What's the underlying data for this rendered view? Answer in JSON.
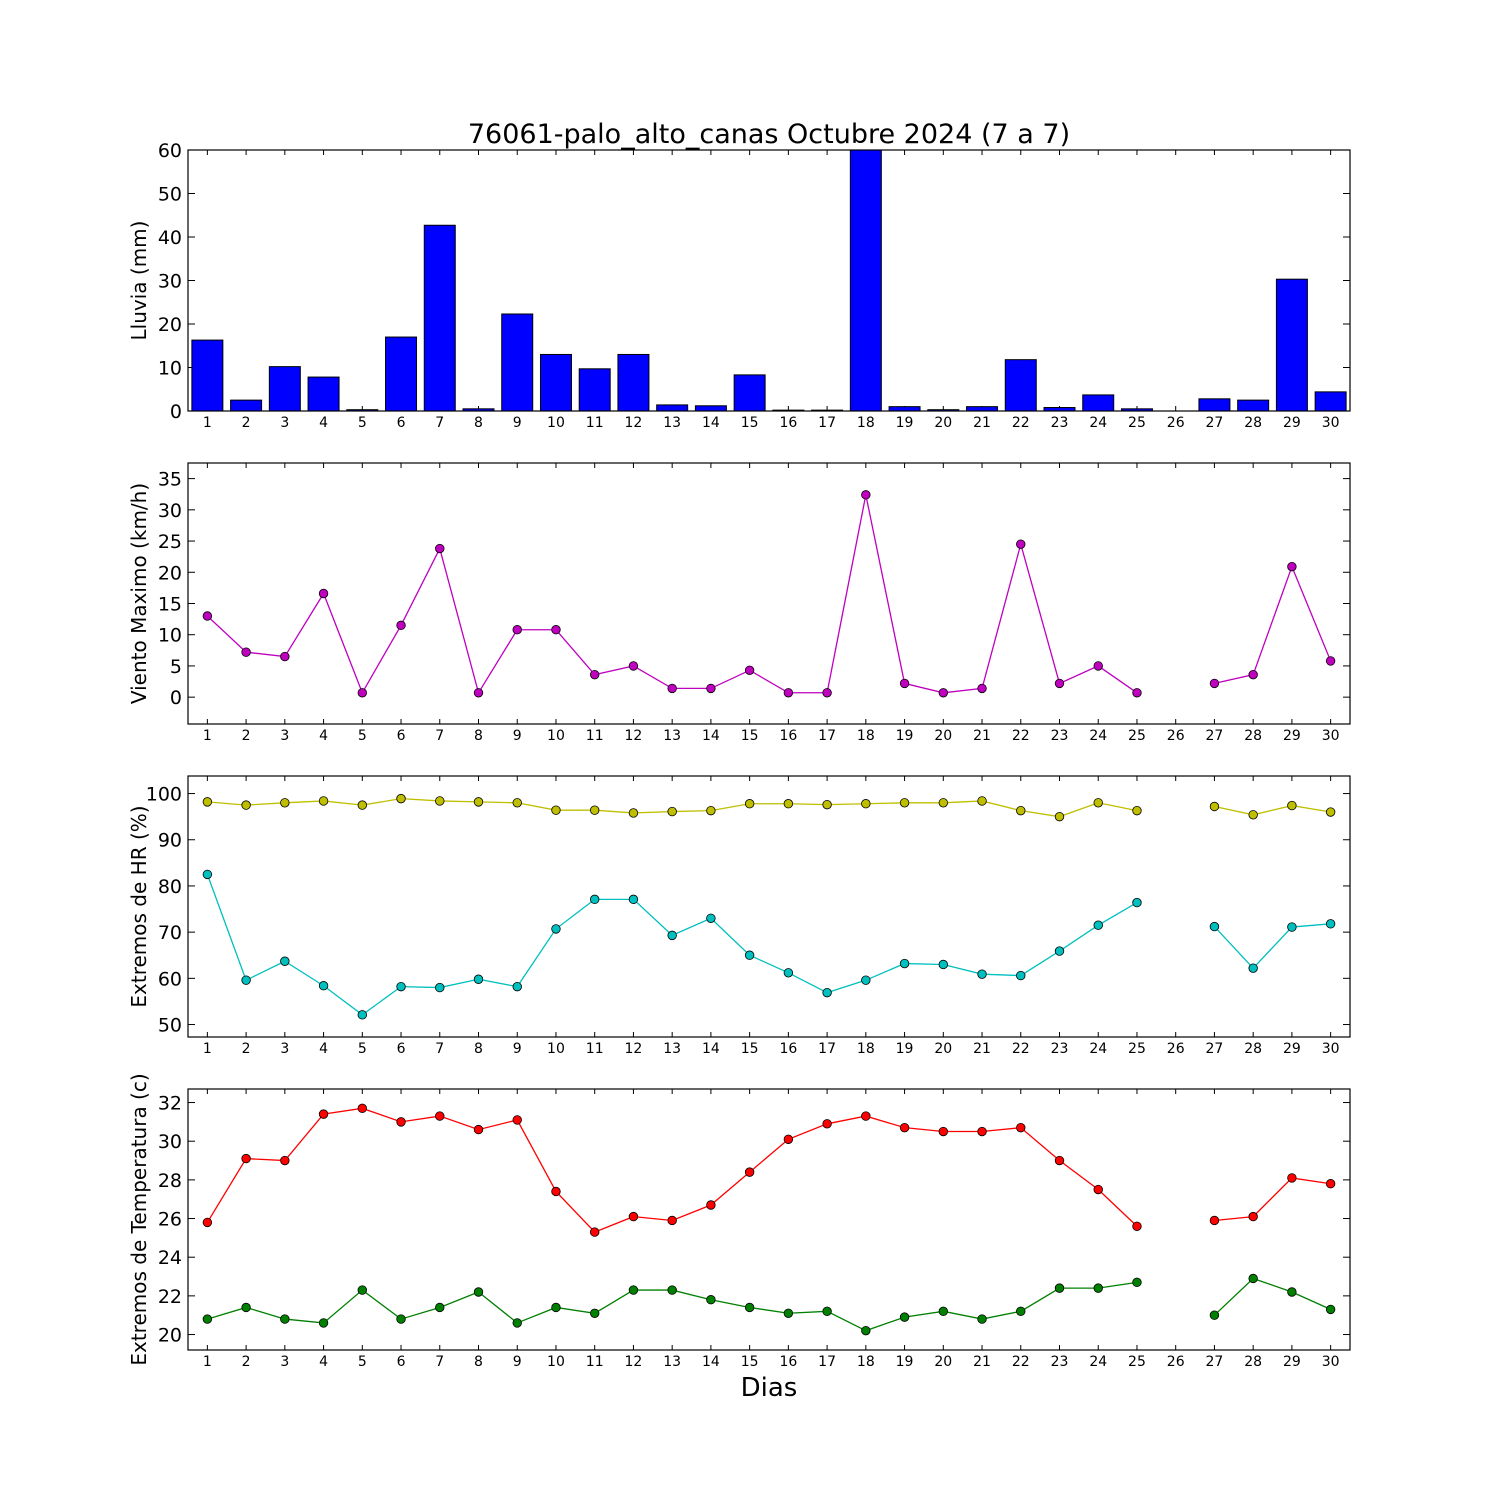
{
  "title": "76061-palo_alto_canas Octubre 2024  (7 a 7)",
  "xlabel": "Dias",
  "chart_data": [
    {
      "type": "bar",
      "ylabel": "Lluvia (mm)",
      "ylim": [
        0,
        60
      ],
      "yticks": [
        0,
        10,
        20,
        30,
        40,
        50,
        60
      ],
      "color": "#0000ff",
      "categories": [
        "1",
        "2",
        "3",
        "4",
        "5",
        "6",
        "7",
        "8",
        "9",
        "10",
        "11",
        "12",
        "13",
        "14",
        "15",
        "16",
        "17",
        "18",
        "19",
        "20",
        "21",
        "22",
        "23",
        "24",
        "25",
        "26",
        "27",
        "28",
        "29",
        "30"
      ],
      "series": [
        {
          "values": [
            16.3,
            2.5,
            10.2,
            7.8,
            0.3,
            17.0,
            42.7,
            0.5,
            22.3,
            13.0,
            9.7,
            13.0,
            1.4,
            1.2,
            8.3,
            0.2,
            0.2,
            60.0,
            1.0,
            0.3,
            1.0,
            11.8,
            0.8,
            3.7,
            0.5,
            null,
            2.8,
            2.5,
            30.3,
            4.4
          ]
        }
      ]
    },
    {
      "type": "line",
      "ylabel": "Viento Maximo (km/h)",
      "ylim": [
        -4.3,
        37.5
      ],
      "yticks": [
        0,
        5,
        10,
        15,
        20,
        25,
        30,
        35
      ],
      "categories": [
        "1",
        "2",
        "3",
        "4",
        "5",
        "6",
        "7",
        "8",
        "9",
        "10",
        "11",
        "12",
        "13",
        "14",
        "15",
        "16",
        "17",
        "18",
        "19",
        "20",
        "21",
        "22",
        "23",
        "24",
        "25",
        "26",
        "27",
        "28",
        "29",
        "30"
      ],
      "series": [
        {
          "color": "#bf00bf",
          "values": [
            13.0,
            7.2,
            6.5,
            16.6,
            0.7,
            11.5,
            23.8,
            0.7,
            10.8,
            10.8,
            3.6,
            5.0,
            1.4,
            1.4,
            4.3,
            0.7,
            0.7,
            32.4,
            2.2,
            0.7,
            1.4,
            24.5,
            2.2,
            5.0,
            0.7,
            null,
            2.2,
            3.6,
            20.9,
            5.8
          ]
        }
      ]
    },
    {
      "type": "line",
      "ylabel": "Extremos de HR (%)",
      "ylim": [
        47.3,
        103.8
      ],
      "yticks": [
        50,
        60,
        70,
        80,
        90,
        100
      ],
      "categories": [
        "1",
        "2",
        "3",
        "4",
        "5",
        "6",
        "7",
        "8",
        "9",
        "10",
        "11",
        "12",
        "13",
        "14",
        "15",
        "16",
        "17",
        "18",
        "19",
        "20",
        "21",
        "22",
        "23",
        "24",
        "25",
        "26",
        "27",
        "28",
        "29",
        "30"
      ],
      "series": [
        {
          "color": "#bfbf00",
          "values": [
            98.2,
            97.5,
            98.0,
            98.4,
            97.5,
            98.9,
            98.4,
            98.2,
            98.0,
            96.4,
            96.4,
            95.8,
            96.1,
            96.3,
            97.8,
            97.8,
            97.6,
            97.8,
            98.0,
            98.0,
            98.4,
            96.3,
            95.0,
            98.0,
            96.3,
            null,
            97.2,
            95.4,
            97.4,
            96.0
          ]
        },
        {
          "color": "#00bfbf",
          "values": [
            82.5,
            59.6,
            63.7,
            58.4,
            52.1,
            58.2,
            58.0,
            59.8,
            58.2,
            70.7,
            77.1,
            77.1,
            69.3,
            73.0,
            65.0,
            61.2,
            56.9,
            59.6,
            63.2,
            63.0,
            60.9,
            60.6,
            65.9,
            71.5,
            76.4,
            null,
            71.2,
            62.2,
            71.1,
            71.8
          ]
        }
      ]
    },
    {
      "type": "line",
      "ylabel": "Extremos de Temperatura (c)",
      "ylim": [
        19.2,
        32.7
      ],
      "yticks": [
        20,
        22,
        24,
        26,
        28,
        30,
        32
      ],
      "categories": [
        "1",
        "2",
        "3",
        "4",
        "5",
        "6",
        "7",
        "8",
        "9",
        "10",
        "11",
        "12",
        "13",
        "14",
        "15",
        "16",
        "17",
        "18",
        "19",
        "20",
        "21",
        "22",
        "23",
        "24",
        "25",
        "26",
        "27",
        "28",
        "29",
        "30"
      ],
      "series": [
        {
          "color": "#ff0000",
          "values": [
            25.8,
            29.1,
            29.0,
            31.4,
            31.7,
            31.0,
            31.3,
            30.6,
            31.1,
            27.4,
            25.3,
            26.1,
            25.9,
            26.7,
            28.4,
            30.1,
            30.9,
            31.3,
            30.7,
            30.5,
            30.5,
            30.7,
            29.0,
            27.5,
            25.6,
            null,
            25.9,
            26.1,
            28.1,
            27.8
          ]
        },
        {
          "color": "#008000",
          "values": [
            20.8,
            21.4,
            20.8,
            20.6,
            22.3,
            20.8,
            21.4,
            22.2,
            20.6,
            21.4,
            21.1,
            22.3,
            22.3,
            21.8,
            21.4,
            21.1,
            21.2,
            20.2,
            20.9,
            21.2,
            20.8,
            21.2,
            22.4,
            22.4,
            22.7,
            null,
            21.0,
            22.9,
            22.2,
            21.3
          ]
        }
      ]
    }
  ]
}
